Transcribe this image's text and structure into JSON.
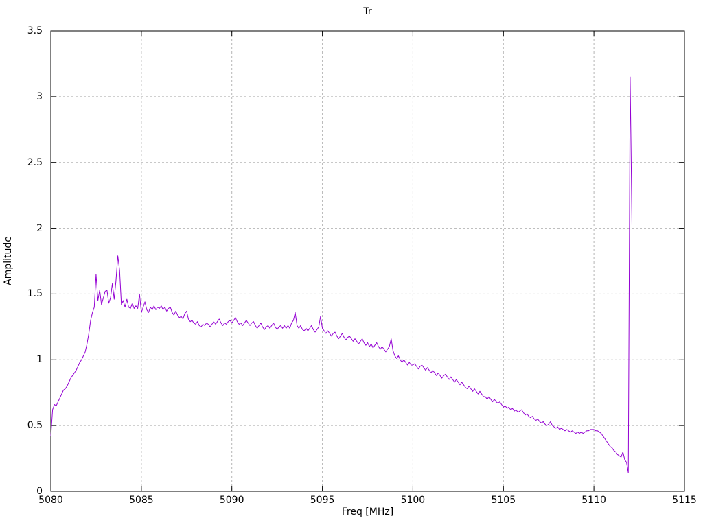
{
  "chart_data": {
    "type": "line",
    "title": "Tr",
    "xlabel": "Freq [MHz]",
    "ylabel": "Amplitude",
    "xlim": [
      5080,
      5115
    ],
    "ylim": [
      0,
      3.5
    ],
    "xticks": [
      5080,
      5085,
      5090,
      5095,
      5100,
      5105,
      5110,
      5115
    ],
    "xtick_labels": [
      "5080",
      "5085",
      "5090",
      "5095",
      "5100",
      "5105",
      "5110",
      "5115"
    ],
    "yticks": [
      0,
      0.5,
      1,
      1.5,
      2,
      2.5,
      3,
      3.5
    ],
    "ytick_labels": [
      "0",
      "0.5",
      "1",
      "1.5",
      "2",
      "2.5",
      "3",
      "3.5"
    ],
    "grid": true,
    "legend": "none",
    "line_color": "#9400d3",
    "grid_color": "#b5b5b5",
    "axis_color": "#000000",
    "series": [
      {
        "name": "Tr",
        "x_start": 5080.0,
        "x_step": 0.1,
        "y": [
          0.42,
          0.62,
          0.66,
          0.65,
          0.68,
          0.71,
          0.74,
          0.77,
          0.78,
          0.8,
          0.83,
          0.86,
          0.88,
          0.9,
          0.92,
          0.95,
          0.98,
          1.0,
          1.03,
          1.06,
          1.12,
          1.2,
          1.3,
          1.36,
          1.4,
          1.65,
          1.45,
          1.53,
          1.42,
          1.47,
          1.52,
          1.53,
          1.43,
          1.47,
          1.58,
          1.46,
          1.6,
          1.79,
          1.68,
          1.42,
          1.45,
          1.4,
          1.46,
          1.4,
          1.39,
          1.43,
          1.39,
          1.41,
          1.39,
          1.5,
          1.36,
          1.4,
          1.44,
          1.38,
          1.36,
          1.4,
          1.38,
          1.41,
          1.38,
          1.4,
          1.39,
          1.41,
          1.38,
          1.4,
          1.37,
          1.39,
          1.4,
          1.36,
          1.34,
          1.37,
          1.34,
          1.32,
          1.33,
          1.31,
          1.35,
          1.37,
          1.31,
          1.29,
          1.3,
          1.28,
          1.27,
          1.29,
          1.26,
          1.25,
          1.27,
          1.26,
          1.28,
          1.27,
          1.25,
          1.27,
          1.29,
          1.27,
          1.29,
          1.31,
          1.28,
          1.26,
          1.28,
          1.27,
          1.29,
          1.3,
          1.28,
          1.3,
          1.32,
          1.29,
          1.27,
          1.28,
          1.26,
          1.28,
          1.3,
          1.28,
          1.26,
          1.28,
          1.29,
          1.26,
          1.24,
          1.26,
          1.28,
          1.25,
          1.23,
          1.25,
          1.26,
          1.24,
          1.26,
          1.28,
          1.25,
          1.23,
          1.25,
          1.26,
          1.24,
          1.26,
          1.24,
          1.26,
          1.24,
          1.28,
          1.3,
          1.36,
          1.26,
          1.24,
          1.26,
          1.23,
          1.22,
          1.24,
          1.22,
          1.24,
          1.26,
          1.23,
          1.21,
          1.23,
          1.25,
          1.33,
          1.24,
          1.22,
          1.2,
          1.22,
          1.2,
          1.18,
          1.2,
          1.21,
          1.18,
          1.16,
          1.18,
          1.2,
          1.17,
          1.15,
          1.17,
          1.18,
          1.16,
          1.14,
          1.16,
          1.14,
          1.12,
          1.14,
          1.16,
          1.13,
          1.11,
          1.13,
          1.1,
          1.12,
          1.09,
          1.11,
          1.13,
          1.1,
          1.08,
          1.1,
          1.08,
          1.06,
          1.08,
          1.1,
          1.16,
          1.07,
          1.03,
          1.01,
          1.03,
          1.0,
          0.98,
          1.0,
          0.98,
          0.96,
          0.98,
          0.96,
          0.96,
          0.97,
          0.95,
          0.93,
          0.95,
          0.96,
          0.94,
          0.92,
          0.94,
          0.92,
          0.9,
          0.92,
          0.9,
          0.88,
          0.9,
          0.88,
          0.86,
          0.88,
          0.89,
          0.87,
          0.85,
          0.87,
          0.85,
          0.83,
          0.85,
          0.83,
          0.81,
          0.83,
          0.81,
          0.79,
          0.78,
          0.8,
          0.78,
          0.76,
          0.78,
          0.76,
          0.74,
          0.76,
          0.74,
          0.72,
          0.72,
          0.7,
          0.72,
          0.7,
          0.68,
          0.7,
          0.68,
          0.67,
          0.68,
          0.66,
          0.64,
          0.65,
          0.63,
          0.64,
          0.62,
          0.63,
          0.61,
          0.62,
          0.6,
          0.61,
          0.62,
          0.6,
          0.58,
          0.59,
          0.57,
          0.56,
          0.57,
          0.55,
          0.54,
          0.55,
          0.53,
          0.52,
          0.53,
          0.51,
          0.5,
          0.51,
          0.53,
          0.5,
          0.49,
          0.48,
          0.49,
          0.47,
          0.48,
          0.47,
          0.46,
          0.47,
          0.46,
          0.45,
          0.46,
          0.45,
          0.44,
          0.45,
          0.44,
          0.45,
          0.44,
          0.45,
          0.46,
          0.46,
          0.47,
          0.47,
          0.47,
          0.46,
          0.46,
          0.45,
          0.44,
          0.42,
          0.4,
          0.38,
          0.36,
          0.34,
          0.33,
          0.31,
          0.3,
          0.28,
          0.27,
          0.26,
          0.3,
          0.24,
          0.22,
          0.14,
          3.15,
          2.02
        ]
      }
    ]
  }
}
